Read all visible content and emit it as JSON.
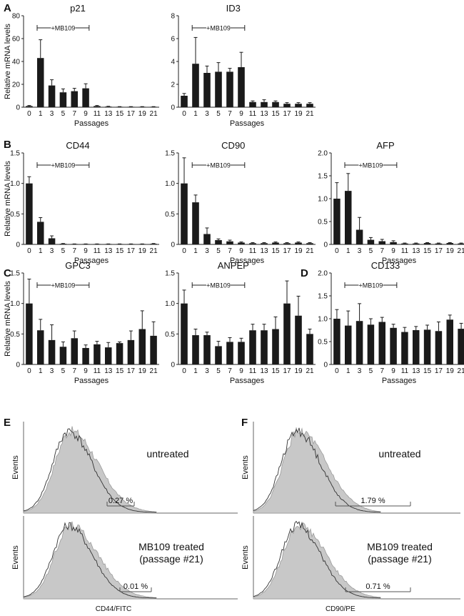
{
  "panel_letters": [
    "A",
    "B",
    "C",
    "D",
    "E",
    "F"
  ],
  "chart_data": [
    {
      "type": "bar",
      "title": "p21",
      "categories": [
        "0",
        "1",
        "3",
        "5",
        "7",
        "9",
        "11",
        "13",
        "15",
        "17",
        "19",
        "21"
      ],
      "values": [
        1,
        43,
        19,
        13,
        14,
        16.5,
        1,
        0.5,
        0.3,
        0.3,
        0.3,
        0.3
      ],
      "errors": [
        0.5,
        16,
        5,
        3,
        2.5,
        4,
        0.5,
        0.3,
        0.2,
        0.2,
        0.2,
        0.2
      ],
      "ylim": [
        0,
        80
      ],
      "yticks": [
        0,
        20,
        40,
        60,
        80
      ],
      "ytick_labels": [
        "0",
        "20",
        "40",
        "60",
        "80"
      ],
      "xlabel": "Passages",
      "ylabel": "Relative mRNA levels",
      "annotation": "+MB109"
    },
    {
      "type": "bar",
      "title": "ID3",
      "categories": [
        "0",
        "1",
        "3",
        "5",
        "7",
        "9",
        "11",
        "13",
        "15",
        "17",
        "19",
        "21"
      ],
      "values": [
        1.0,
        3.8,
        3.0,
        3.1,
        3.1,
        3.5,
        0.45,
        0.45,
        0.45,
        0.3,
        0.3,
        0.3
      ],
      "errors": [
        0.2,
        2.3,
        0.6,
        0.8,
        0.3,
        1.3,
        0.1,
        0.2,
        0.1,
        0.1,
        0.1,
        0.1
      ],
      "ylim": [
        0,
        8
      ],
      "yticks": [
        0,
        2,
        4,
        6,
        8
      ],
      "ytick_labels": [
        "0",
        "2",
        "4",
        "6",
        "8"
      ],
      "xlabel": "Passages",
      "ylabel": "",
      "annotation": "+MB109"
    },
    {
      "type": "bar",
      "title": "CD44",
      "categories": [
        "0",
        "1",
        "3",
        "5",
        "7",
        "9",
        "11",
        "13",
        "15",
        "17",
        "19",
        "21"
      ],
      "values": [
        1.0,
        0.37,
        0.1,
        0.01,
        0.005,
        0.005,
        0.005,
        0.005,
        0.005,
        0.005,
        0.005,
        0.01
      ],
      "errors": [
        0.11,
        0.07,
        0.04,
        0.005,
        0.003,
        0.003,
        0.003,
        0.003,
        0.003,
        0.003,
        0.003,
        0.005
      ],
      "ylim": [
        0,
        1.5
      ],
      "yticks": [
        0,
        0.5,
        1.0,
        1.5
      ],
      "ytick_labels": [
        "0",
        "0.5",
        "1.0",
        "1.5"
      ],
      "xlabel": "Passages",
      "ylabel": "Relative mRNA levels",
      "annotation": "+MB109"
    },
    {
      "type": "bar",
      "title": "CD90",
      "categories": [
        "0",
        "1",
        "3",
        "5",
        "7",
        "9",
        "11",
        "13",
        "15",
        "17",
        "19",
        "21"
      ],
      "values": [
        1.0,
        0.69,
        0.17,
        0.07,
        0.05,
        0.03,
        0.02,
        0.02,
        0.03,
        0.02,
        0.03,
        0.02
      ],
      "errors": [
        0.42,
        0.12,
        0.1,
        0.02,
        0.02,
        0.01,
        0.01,
        0.01,
        0.01,
        0.01,
        0.01,
        0.01
      ],
      "ylim": [
        0,
        1.5
      ],
      "yticks": [
        0,
        0.5,
        1.0,
        1.5
      ],
      "ytick_labels": [
        "0",
        "0.5",
        "1.0",
        "1.5"
      ],
      "xlabel": "Passages",
      "ylabel": "",
      "annotation": "+MB109"
    },
    {
      "type": "bar",
      "title": "AFP",
      "categories": [
        "0",
        "1",
        "3",
        "5",
        "7",
        "9",
        "11",
        "13",
        "15",
        "17",
        "19",
        "21"
      ],
      "values": [
        1.0,
        1.17,
        0.32,
        0.1,
        0.07,
        0.05,
        0.02,
        0.02,
        0.03,
        0.02,
        0.03,
        0.02
      ],
      "errors": [
        0.35,
        0.38,
        0.27,
        0.05,
        0.04,
        0.03,
        0.01,
        0.01,
        0.01,
        0.01,
        0.01,
        0.01
      ],
      "ylim": [
        0,
        2.0
      ],
      "yticks": [
        0,
        0.5,
        1.0,
        1.5,
        2.0
      ],
      "ytick_labels": [
        "0",
        "0.5",
        "1.0",
        "1.5",
        "2.0"
      ],
      "xlabel": "Passages",
      "ylabel": "",
      "annotation": "+MB109"
    },
    {
      "type": "bar",
      "title": "GPC3",
      "categories": [
        "0",
        "1",
        "3",
        "5",
        "7",
        "9",
        "11",
        "13",
        "15",
        "17",
        "19",
        "21"
      ],
      "values": [
        1.0,
        0.56,
        0.4,
        0.29,
        0.43,
        0.27,
        0.33,
        0.28,
        0.35,
        0.4,
        0.58,
        0.47
      ],
      "errors": [
        0.4,
        0.18,
        0.25,
        0.08,
        0.12,
        0.05,
        0.05,
        0.08,
        0.02,
        0.15,
        0.3,
        0.23
      ],
      "ylim": [
        0,
        1.5
      ],
      "yticks": [
        0,
        0.5,
        1.0,
        1.5
      ],
      "ytick_labels": [
        "0",
        "0.5",
        "1.0",
        "1.5"
      ],
      "xlabel": "Passages",
      "ylabel": "Relative mRNA levels",
      "annotation": "+MB109"
    },
    {
      "type": "bar",
      "title": "ANPEP",
      "categories": [
        "0",
        "1",
        "3",
        "5",
        "7",
        "9",
        "11",
        "13",
        "15",
        "17",
        "19",
        "21"
      ],
      "values": [
        1.0,
        0.48,
        0.48,
        0.3,
        0.37,
        0.37,
        0.56,
        0.56,
        0.58,
        1.0,
        0.8,
        0.5
      ],
      "errors": [
        0.22,
        0.1,
        0.05,
        0.08,
        0.07,
        0.06,
        0.1,
        0.1,
        0.2,
        0.37,
        0.32,
        0.08
      ],
      "ylim": [
        0,
        1.5
      ],
      "yticks": [
        0,
        0.5,
        1.0,
        1.5
      ],
      "ytick_labels": [
        "0",
        "0.5",
        "1.0",
        "1.5"
      ],
      "xlabel": "Passages",
      "ylabel": "",
      "annotation": "+MB109"
    },
    {
      "type": "bar",
      "title": "CD133",
      "categories": [
        "0",
        "1",
        "3",
        "5",
        "7",
        "9",
        "11",
        "13",
        "15",
        "17",
        "19",
        "21"
      ],
      "values": [
        1.0,
        0.85,
        0.95,
        0.87,
        0.93,
        0.8,
        0.71,
        0.75,
        0.76,
        0.73,
        0.98,
        0.78
      ],
      "errors": [
        0.2,
        0.32,
        0.38,
        0.13,
        0.1,
        0.08,
        0.1,
        0.08,
        0.1,
        0.2,
        0.1,
        0.12
      ],
      "ylim": [
        0,
        2.0
      ],
      "yticks": [
        0,
        0.5,
        1.0,
        1.5,
        2.0
      ],
      "ytick_labels": [
        "0",
        "0.5",
        "1.0",
        "1.5",
        "2.0"
      ],
      "xlabel": "Passages",
      "ylabel": "",
      "annotation": "+MB109"
    }
  ],
  "histograms": [
    {
      "title": "untreated",
      "title2": "",
      "ylabel": "Events",
      "gate_label": "0.27 %",
      "xlabel": ""
    },
    {
      "title": "MB109 treated",
      "title2": "(passage #21)",
      "ylabel": "Events",
      "gate_label": "0.01 %",
      "xlabel": "CD44/FITC"
    },
    {
      "title": "untreated",
      "title2": "",
      "ylabel": "Events",
      "gate_label": "1.79 %",
      "xlabel": ""
    },
    {
      "title": "MB109 treated",
      "title2": "(passage #21)",
      "ylabel": "Events",
      "gate_label": "0.71 %",
      "xlabel": "CD90/PE"
    }
  ]
}
